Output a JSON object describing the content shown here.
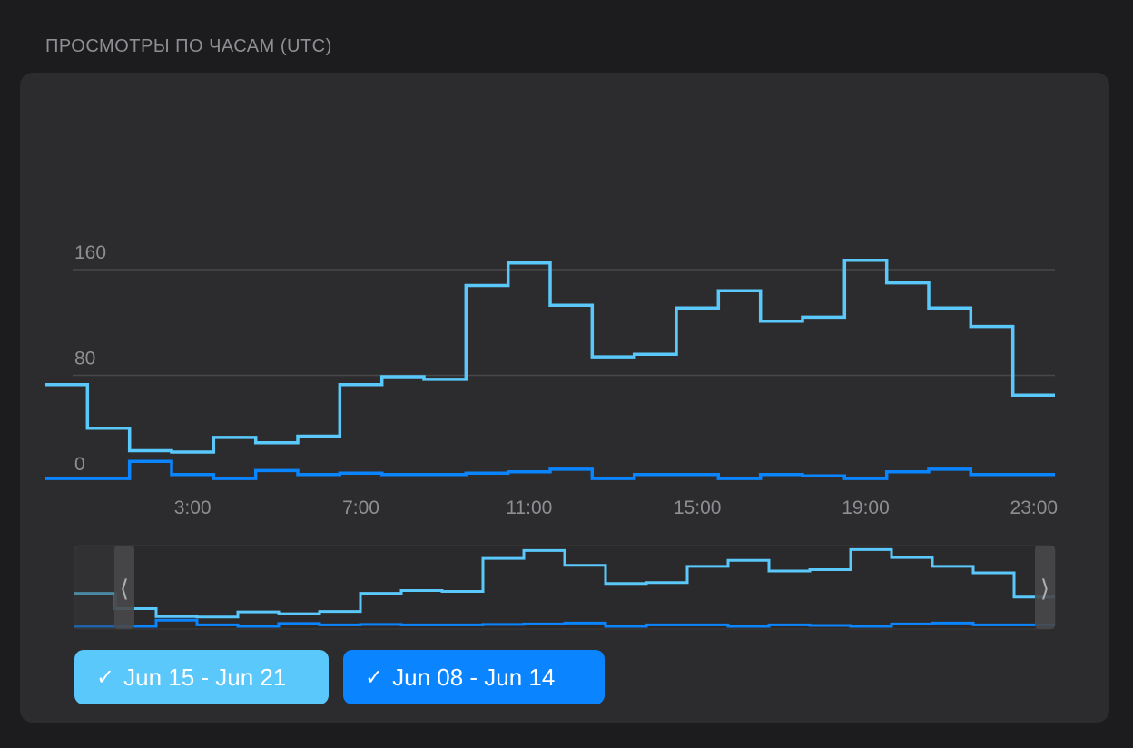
{
  "title": "ПРОСМОТРЫ ПО ЧАСАМ (UTC)",
  "colors": {
    "series1": "#5ac8fa",
    "series2": "#0a84ff",
    "grid": "#48484a",
    "card": "#2c2c2e"
  },
  "legend": [
    {
      "label": "Jun 15 - Jun 21",
      "check": "✓",
      "color": "#5ac8fa"
    },
    {
      "label": "Jun 08 - Jun 14",
      "check": "✓",
      "color": "#0a84ff"
    }
  ],
  "chart_data": {
    "type": "line",
    "step": true,
    "title": "ПРОСМОТРЫ ПО ЧАСАМ (UTC)",
    "x": [
      0,
      1,
      2,
      3,
      4,
      5,
      6,
      7,
      8,
      9,
      10,
      11,
      12,
      13,
      14,
      15,
      16,
      17,
      18,
      19,
      20,
      21,
      22,
      23
    ],
    "xticks": [
      "3:00",
      "7:00",
      "11:00",
      "15:00",
      "19:00",
      "23:00"
    ],
    "xtick_hours": [
      3,
      7,
      11,
      15,
      19,
      23
    ],
    "yticks": [
      0,
      80,
      160
    ],
    "ylim": [
      0,
      160
    ],
    "grid": true,
    "series": [
      {
        "name": "Jun 15 - Jun 21",
        "values": [
          73,
          40,
          23,
          22,
          33,
          29,
          34,
          73,
          79,
          77,
          148,
          165,
          133,
          94,
          96,
          131,
          144,
          121,
          124,
          167,
          150,
          131,
          117,
          65
        ]
      },
      {
        "name": "Jun 08 - Jun 14",
        "values": [
          2,
          2,
          15,
          5,
          2,
          8,
          5,
          6,
          5,
          5,
          6,
          7,
          9,
          2,
          5,
          5,
          2,
          5,
          4,
          2,
          7,
          9,
          5,
          5
        ]
      }
    ],
    "navigator": {
      "range_handles": [
        "⟨",
        "⟩"
      ]
    }
  }
}
